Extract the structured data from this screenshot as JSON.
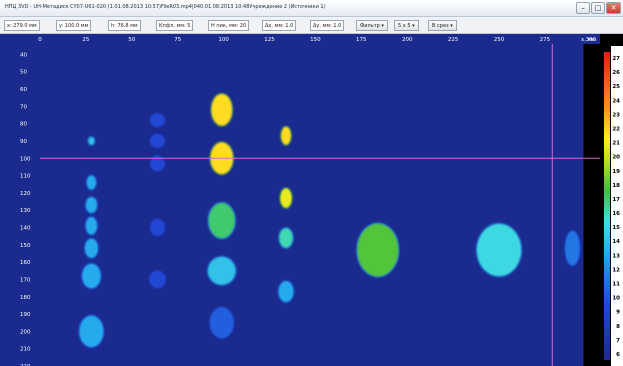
{
  "window": {
    "title": "НПЦ 3VD - UH-Метадиск CY07-U61-020 (1.01.08.2013 10:57)FileR03.mp4|040.01.08.2013 10:48Учреждение 2 (Источники 1)",
    "min_label": "–",
    "max_label": "□",
    "close_label": "✕"
  },
  "toolbar": {
    "items": [
      "x: 279.0 мм",
      "y: 100.0 мм",
      "h: 76.8 мм",
      "Кпфл, мм: 5",
      "Н пик, мм: 20",
      "Δх, мм: 1.0",
      "Δу, мм: 1.0",
      "Фильтр ▾",
      "5 x 5 ▾",
      "В срез ▾"
    ]
  },
  "chart_data": {
    "type": "heatmap",
    "x_ticks": [
      0,
      25,
      50,
      75,
      100,
      125,
      150,
      175,
      200,
      225,
      250,
      275,
      300
    ],
    "x_end_label": "x, мм",
    "y_ticks": [
      40,
      50,
      60,
      70,
      80,
      90,
      100,
      110,
      120,
      130,
      140,
      150,
      160,
      170,
      180,
      190,
      200,
      210,
      220
    ],
    "xlim": [
      0,
      305
    ],
    "ylim": [
      34,
      220
    ],
    "cursor": {
      "x": 279,
      "y": 100
    },
    "background_color": "#1a2a8e",
    "colorbar": {
      "ticks": [
        27,
        26,
        25,
        24,
        23,
        22,
        21,
        20,
        19,
        18,
        17,
        16,
        15,
        14,
        13,
        12,
        11,
        10,
        9,
        8,
        7,
        6
      ],
      "range": [
        5,
        28
      ]
    },
    "spots": [
      {
        "x": 28,
        "y": 90,
        "rx": 1.6,
        "ry": 2.2,
        "value": 14
      },
      {
        "x": 28,
        "y": 114,
        "rx": 2.5,
        "ry": 4,
        "value": 13
      },
      {
        "x": 28,
        "y": 127,
        "rx": 3,
        "ry": 4.5,
        "value": 13
      },
      {
        "x": 28,
        "y": 139,
        "rx": 3,
        "ry": 5,
        "value": 13
      },
      {
        "x": 28,
        "y": 152,
        "rx": 3.5,
        "ry": 5.5,
        "value": 13
      },
      {
        "x": 28,
        "y": 168,
        "rx": 5,
        "ry": 7,
        "value": 13
      },
      {
        "x": 28,
        "y": 200,
        "rx": 6.5,
        "ry": 9,
        "value": 13
      },
      {
        "x": 64,
        "y": 78,
        "rx": 4,
        "ry": 4,
        "value": 9
      },
      {
        "x": 64,
        "y": 90,
        "rx": 4,
        "ry": 4,
        "value": 9
      },
      {
        "x": 64,
        "y": 103,
        "rx": 4,
        "ry": 4.5,
        "value": 9
      },
      {
        "x": 64,
        "y": 140,
        "rx": 4,
        "ry": 5,
        "value": 9
      },
      {
        "x": 64,
        "y": 170,
        "rx": 4.5,
        "ry": 5,
        "value": 9
      },
      {
        "x": 99,
        "y": 72,
        "rx": 5.5,
        "ry": 9,
        "value": 22
      },
      {
        "x": 99,
        "y": 100,
        "rx": 6,
        "ry": 9,
        "value": 22
      },
      {
        "x": 99,
        "y": 136,
        "rx": 7,
        "ry": 10,
        "value": 17
      },
      {
        "x": 99,
        "y": 165,
        "rx": 7.5,
        "ry": 8,
        "value": 14
      },
      {
        "x": 99,
        "y": 195,
        "rx": 6.5,
        "ry": 9,
        "value": 10
      },
      {
        "x": 134,
        "y": 87,
        "rx": 2.5,
        "ry": 5,
        "value": 22
      },
      {
        "x": 134,
        "y": 123,
        "rx": 3,
        "ry": 5.5,
        "value": 21
      },
      {
        "x": 134,
        "y": 146,
        "rx": 3.5,
        "ry": 5.5,
        "value": 16
      },
      {
        "x": 134,
        "y": 177,
        "rx": 4,
        "ry": 6,
        "value": 13
      },
      {
        "x": 184,
        "y": 153,
        "rx": 11,
        "ry": 15,
        "value": 18
      },
      {
        "x": 250,
        "y": 153,
        "rx": 12,
        "ry": 15,
        "value": 15
      },
      {
        "x": 290,
        "y": 152,
        "rx": 4,
        "ry": 10,
        "value": 11
      }
    ]
  }
}
